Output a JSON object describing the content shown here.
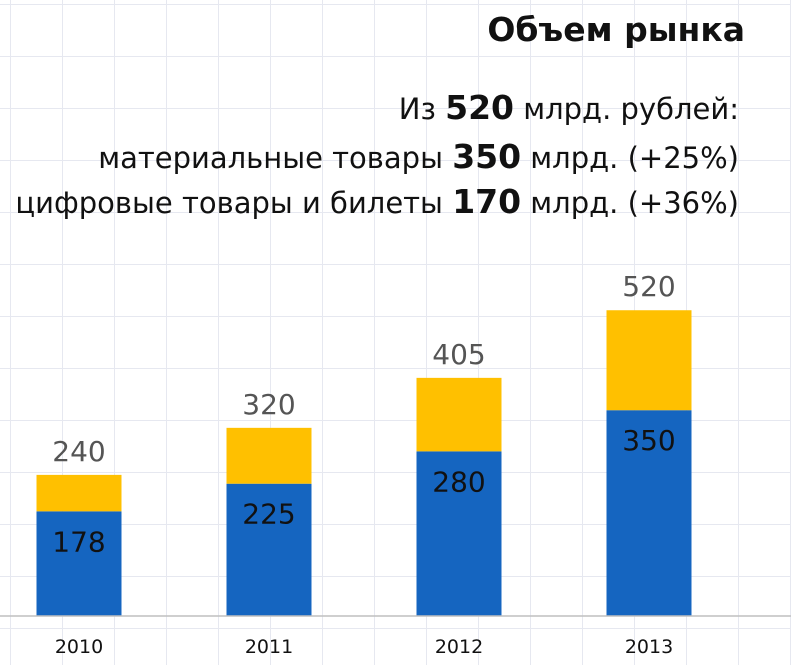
{
  "header": {
    "title": "Объем рынка",
    "line1": {
      "prefix": "Из ",
      "value": "520",
      "suffix": " млрд. рублей:"
    },
    "line2": {
      "prefix": "материальные товары ",
      "value": "350",
      "suffix": " млрд. (+25%)"
    },
    "line3": {
      "prefix": "цифровые товары и билеты ",
      "value": "170",
      "suffix": " млрд. (+36%)"
    }
  },
  "colors": {
    "bottom_series": "#1565c0",
    "top_series": "#ffc000",
    "grid": "#e6e8f0"
  },
  "chart_data": {
    "type": "bar",
    "stacked": true,
    "title": "Объем рынка",
    "xlabel": "",
    "ylabel": "",
    "categories": [
      "2010",
      "2011",
      "2012",
      "2013"
    ],
    "series": [
      {
        "values": [
          178,
          225,
          280,
          350
        ],
        "color": "#1565c0"
      },
      {
        "values": [
          62,
          95,
          125,
          170
        ],
        "color": "#ffc000"
      }
    ],
    "totals": [
      "240",
      "320",
      "405",
      "520"
    ],
    "segment_labels": [
      "178",
      "225",
      "280",
      "350"
    ],
    "ylim": [
      0,
      520
    ],
    "grid": true,
    "legend": "none"
  }
}
